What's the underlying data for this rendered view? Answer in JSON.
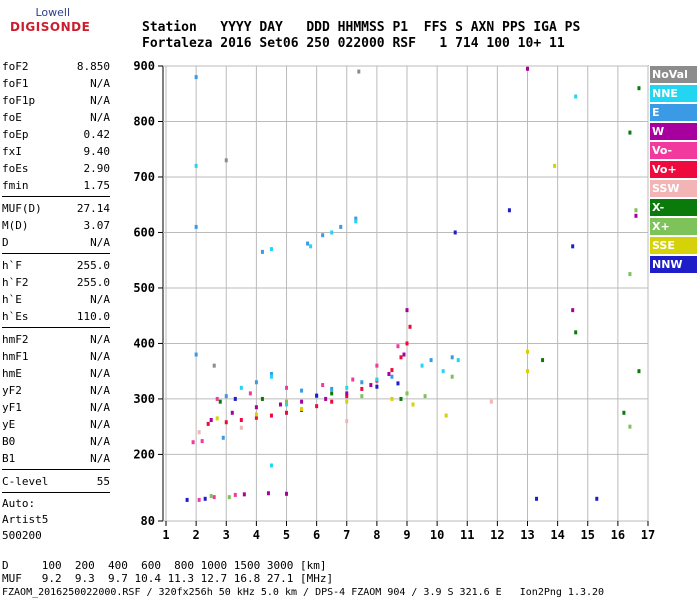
{
  "logo": {
    "brand": "Lowell",
    "name": "DIGISONDE"
  },
  "header": {
    "labels": "Station   YYYY DAY   DDD HHMMSS P1  FFS S AXN PPS IGA PS",
    "values": "Fortaleza 2016 Set06 250 022000 RSF   1 714 100 10+ 11"
  },
  "params_group1": [
    {
      "name": "foF2",
      "value": "8.850"
    },
    {
      "name": "foF1",
      "value": "N/A"
    },
    {
      "name": "foF1p",
      "value": "N/A"
    },
    {
      "name": "foE",
      "value": "N/A"
    },
    {
      "name": "foEp",
      "value": "0.42"
    },
    {
      "name": "fxI",
      "value": "9.40"
    },
    {
      "name": "foEs",
      "value": "2.90"
    },
    {
      "name": "fmin",
      "value": "1.75"
    }
  ],
  "params_group2": [
    {
      "name": "MUF(D)",
      "value": "27.14"
    },
    {
      "name": "M(D)",
      "value": "3.07"
    },
    {
      "name": "D",
      "value": "N/A"
    }
  ],
  "params_group3": [
    {
      "name": "h`F",
      "value": "255.0"
    },
    {
      "name": "h`F2",
      "value": "255.0"
    },
    {
      "name": "h`E",
      "value": "N/A"
    },
    {
      "name": "h`Es",
      "value": "110.0"
    }
  ],
  "params_group4": [
    {
      "name": "hmF2",
      "value": "N/A"
    },
    {
      "name": "hmF1",
      "value": "N/A"
    },
    {
      "name": "hmE",
      "value": "N/A"
    },
    {
      "name": "yF2",
      "value": "N/A"
    },
    {
      "name": "yF1",
      "value": "N/A"
    },
    {
      "name": "yE",
      "value": "N/A"
    },
    {
      "name": "B0",
      "value": "N/A"
    },
    {
      "name": "B1",
      "value": "N/A"
    }
  ],
  "clevel": {
    "name": "C-level",
    "value": "55"
  },
  "auto": [
    "Auto:",
    "Artist5",
    "500200"
  ],
  "footer": {
    "d_line": "D     100  200  400  600  800 1000 1500 3000 [km]",
    "muf_line": "MUF   9.2  9.3  9.7 10.4 11.3 12.7 16.8 27.1 [MHz]",
    "file_line": "FZAOM_2016250022000.RSF / 320fx256h 50 kHz 5.0 km / DPS-4 FZAOM 904 / 3.9 S 321.6 E   Ion2Png 1.3.20"
  },
  "legend": [
    {
      "label": "NoVal",
      "color": "#8c8c8c"
    },
    {
      "label": "NNE",
      "color": "#22d6f2"
    },
    {
      "label": "E",
      "color": "#3a9ae6"
    },
    {
      "label": "W",
      "color": "#a8009e"
    },
    {
      "label": "Vo-",
      "color": "#f23a9e"
    },
    {
      "label": "Vo+",
      "color": "#ee0a3c"
    },
    {
      "label": "SSW",
      "color": "#f2b4b4"
    },
    {
      "label": "X-",
      "color": "#0a7a0a"
    },
    {
      "label": "X+",
      "color": "#7ec25a"
    },
    {
      "label": "SSE",
      "color": "#d6d20a"
    },
    {
      "label": "NNW",
      "color": "#1e1ec8"
    }
  ],
  "chart_data": {
    "type": "scatter",
    "xlabel": "",
    "ylabel": "",
    "xlim": [
      0.9,
      17
    ],
    "ylim": [
      80,
      900
    ],
    "x_ticks": [
      1,
      2,
      3,
      4,
      5,
      6,
      7,
      8,
      9,
      10,
      11,
      12,
      13,
      14,
      15,
      16,
      17
    ],
    "y_ticks": [
      80,
      200,
      300,
      400,
      500,
      600,
      700,
      800,
      900
    ],
    "grid": true,
    "series": [
      {
        "mode": "Vo+",
        "color": "#ee0a3c",
        "points": [
          [
            2.4,
            255
          ],
          [
            3.0,
            258
          ],
          [
            3.5,
            262
          ],
          [
            4.0,
            266
          ],
          [
            4.5,
            270
          ],
          [
            5.0,
            275
          ],
          [
            5.5,
            280
          ],
          [
            6.0,
            287
          ],
          [
            6.5,
            295
          ],
          [
            7.0,
            305
          ],
          [
            7.5,
            318
          ],
          [
            8.0,
            333
          ],
          [
            8.5,
            352
          ],
          [
            8.8,
            375
          ],
          [
            9.0,
            400
          ],
          [
            9.1,
            430
          ]
        ]
      },
      {
        "mode": "W",
        "color": "#a8009e",
        "points": [
          [
            2.5,
            262
          ],
          [
            3.2,
            275
          ],
          [
            4.0,
            285
          ],
          [
            4.8,
            290
          ],
          [
            5.5,
            295
          ],
          [
            6.3,
            300
          ],
          [
            7.0,
            310
          ],
          [
            7.8,
            325
          ],
          [
            8.4,
            345
          ],
          [
            8.9,
            380
          ],
          [
            9.0,
            460
          ],
          [
            3.6,
            128
          ],
          [
            4.4,
            130
          ],
          [
            5.0,
            129
          ],
          [
            14.5,
            460
          ],
          [
            16.6,
            630
          ],
          [
            13.0,
            895
          ]
        ]
      },
      {
        "mode": "Vo-",
        "color": "#f23a9e",
        "points": [
          [
            2.7,
            300
          ],
          [
            3.8,
            310
          ],
          [
            5.0,
            320
          ],
          [
            6.2,
            325
          ],
          [
            7.2,
            335
          ],
          [
            8.0,
            360
          ],
          [
            8.7,
            395
          ],
          [
            1.9,
            222
          ],
          [
            2.2,
            224
          ],
          [
            2.1,
            118
          ],
          [
            2.6,
            123
          ],
          [
            3.3,
            127
          ]
        ]
      },
      {
        "mode": "E",
        "color": "#3a9ae6",
        "points": [
          [
            3.0,
            305
          ],
          [
            4.0,
            330
          ],
          [
            4.5,
            345
          ],
          [
            5.5,
            315
          ],
          [
            6.5,
            318
          ],
          [
            7.5,
            330
          ],
          [
            8.5,
            340
          ],
          [
            9.8,
            370
          ],
          [
            10.5,
            375
          ],
          [
            5.7,
            580
          ],
          [
            6.2,
            595
          ],
          [
            6.8,
            610
          ],
          [
            7.3,
            625
          ],
          [
            4.2,
            565
          ],
          [
            2.0,
            880
          ],
          [
            2.0,
            610
          ],
          [
            2.0,
            380
          ],
          [
            2.9,
            230
          ]
        ]
      },
      {
        "mode": "NNE",
        "color": "#22d6f2",
        "points": [
          [
            3.5,
            320
          ],
          [
            4.5,
            340
          ],
          [
            5.0,
            290
          ],
          [
            6.0,
            305
          ],
          [
            7.0,
            320
          ],
          [
            8.0,
            335
          ],
          [
            9.5,
            360
          ],
          [
            10.2,
            350
          ],
          [
            10.7,
            370
          ],
          [
            5.8,
            575
          ],
          [
            6.5,
            600
          ],
          [
            7.3,
            620
          ],
          [
            4.5,
            570
          ],
          [
            14.6,
            845
          ],
          [
            2.0,
            720
          ],
          [
            4.5,
            180
          ]
        ]
      },
      {
        "mode": "SSE",
        "color": "#d6d20a",
        "points": [
          [
            2.7,
            265
          ],
          [
            4.0,
            272
          ],
          [
            5.5,
            282
          ],
          [
            7.0,
            295
          ],
          [
            8.5,
            300
          ],
          [
            9.2,
            290
          ],
          [
            13.0,
            385
          ],
          [
            13.0,
            350
          ],
          [
            13.9,
            720
          ],
          [
            10.3,
            270
          ]
        ]
      },
      {
        "mode": "X-",
        "color": "#0a7a0a",
        "points": [
          [
            2.8,
            295
          ],
          [
            4.2,
            300
          ],
          [
            6.5,
            310
          ],
          [
            8.8,
            300
          ],
          [
            14.6,
            420
          ],
          [
            16.2,
            275
          ],
          [
            16.4,
            780
          ],
          [
            16.7,
            860
          ],
          [
            16.7,
            350
          ],
          [
            13.5,
            370
          ]
        ]
      },
      {
        "mode": "X+",
        "color": "#7ec25a",
        "points": [
          [
            2.5,
            125
          ],
          [
            3.1,
            123
          ],
          [
            5.0,
            295
          ],
          [
            7.5,
            305
          ],
          [
            9.0,
            310
          ],
          [
            16.4,
            525
          ],
          [
            16.4,
            250
          ],
          [
            16.6,
            640
          ],
          [
            9.6,
            305
          ],
          [
            10.5,
            340
          ]
        ]
      },
      {
        "mode": "NNW",
        "color": "#1e1ec8",
        "points": [
          [
            1.7,
            118
          ],
          [
            2.3,
            120
          ],
          [
            3.3,
            300
          ],
          [
            6.0,
            306
          ],
          [
            8.0,
            322
          ],
          [
            8.7,
            328
          ],
          [
            10.6,
            600
          ],
          [
            12.4,
            640
          ],
          [
            13.3,
            120
          ],
          [
            14.5,
            575
          ],
          [
            15.3,
            120
          ]
        ]
      },
      {
        "mode": "SSW",
        "color": "#f2b4b4",
        "points": [
          [
            2.1,
            240
          ],
          [
            3.5,
            248
          ],
          [
            7.0,
            260
          ],
          [
            11.8,
            295
          ]
        ]
      },
      {
        "mode": "NoVal",
        "color": "#8c8c8c",
        "points": [
          [
            7.4,
            890
          ],
          [
            3.0,
            730
          ],
          [
            2.6,
            360
          ]
        ]
      }
    ]
  }
}
